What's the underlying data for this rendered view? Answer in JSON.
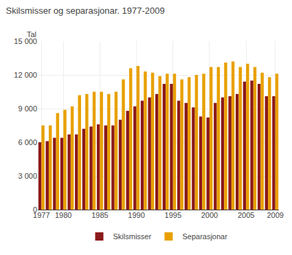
{
  "chart_data": {
    "type": "bar",
    "title": "Skilsmisser og separasjonar. 1977-2009",
    "ylabel": "Tal",
    "categories": [
      "1977",
      null,
      null,
      "1980",
      null,
      null,
      null,
      null,
      "1985",
      null,
      null,
      null,
      null,
      "1990",
      null,
      null,
      null,
      null,
      "1995",
      null,
      null,
      null,
      null,
      "2000",
      null,
      null,
      null,
      null,
      "2005",
      null,
      null,
      null,
      "2009"
    ],
    "series": [
      {
        "name": "Skilsmisser",
        "color": "#8B1A1A",
        "values": [
          6000,
          6100,
          6400,
          6400,
          6700,
          6700,
          7200,
          7400,
          7600,
          7500,
          7500,
          8000,
          8800,
          9200,
          9700,
          10000,
          10300,
          11200,
          11200,
          9700,
          9500,
          9100,
          8300,
          8200,
          9500,
          10000,
          10100,
          10300,
          11400,
          11500,
          11200,
          10100,
          10100
        ]
      },
      {
        "name": "Separasjonar",
        "color": "#E8A000",
        "values": [
          7500,
          7500,
          8600,
          8900,
          9200,
          10200,
          10300,
          10500,
          10500,
          10300,
          10500,
          11600,
          12600,
          12800,
          12300,
          12200,
          11900,
          12100,
          12100,
          11600,
          11800,
          12000,
          12100,
          12700,
          12700,
          13100,
          13200,
          12700,
          13000,
          12700,
          12200,
          11800,
          12100
        ]
      }
    ],
    "ylim": [
      0,
      15000
    ],
    "yticks": [
      0,
      {
        "value": 3000,
        "label": "3 000"
      },
      {
        "value": 6000,
        "label": "6 000"
      },
      {
        "value": 9000,
        "label": "9 000"
      },
      {
        "value": 12000,
        "label": "12 000"
      },
      {
        "value": 15000,
        "label": "15 000"
      }
    ],
    "grid": true,
    "legend": "bottom"
  }
}
